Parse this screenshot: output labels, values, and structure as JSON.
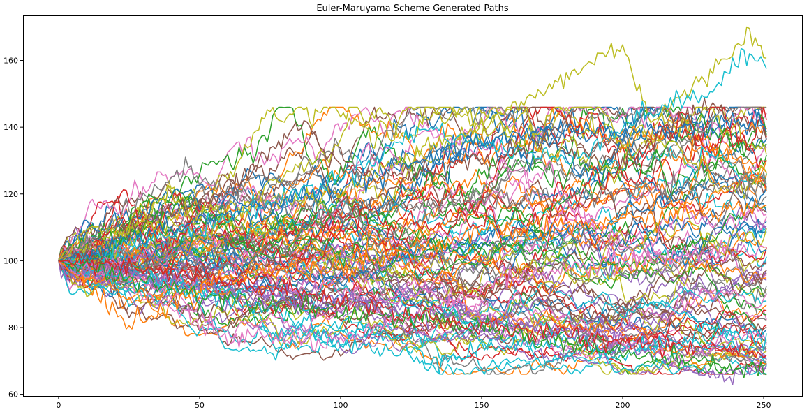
{
  "chart_data": {
    "type": "line",
    "title": "Euler-Maruyama Scheme Generated Paths",
    "xlabel": "",
    "ylabel": "",
    "xlim": [
      -12.6,
      263.6
    ],
    "ylim": [
      59.5,
      173.5
    ],
    "x_ticks": [
      0,
      50,
      100,
      150,
      200,
      250
    ],
    "y_ticks": [
      60,
      80,
      100,
      120,
      140,
      160
    ],
    "grid": false,
    "legend": "none",
    "n_steps": 252,
    "initial_value": 100,
    "n_paths": 100,
    "palette": [
      "#1f77b4",
      "#ff7f0e",
      "#2ca02c",
      "#d62728",
      "#9467bd",
      "#8c564b",
      "#e377c2",
      "#7f7f7f",
      "#bcbd22",
      "#17becf"
    ],
    "series": [
      {
        "color": "#bcbd22",
        "x": [
          0,
          50,
          100,
          130,
          150,
          170,
          200,
          210,
          230,
          245,
          251
        ],
        "values": [
          100,
          115,
          120,
          135,
          140,
          150,
          165,
          142,
          155,
          169,
          160
        ]
      },
      {
        "color": "#17becf",
        "x": [
          0,
          50,
          100,
          130,
          150,
          180,
          210,
          230,
          245,
          251
        ],
        "values": [
          100,
          110,
          125,
          140,
          135,
          130,
          145,
          150,
          162,
          158
        ]
      },
      {
        "color": "#8c564b",
        "x": [
          0,
          40,
          60,
          75,
          88,
          95,
          110,
          140,
          170,
          200,
          230,
          251
        ],
        "values": [
          100,
          115,
          120,
          133,
          142,
          131,
          125,
          128,
          135,
          130,
          147,
          137
        ]
      },
      {
        "color": "#7f7f7f",
        "x": [
          0,
          25,
          45,
          55,
          70,
          100,
          150,
          200,
          251
        ],
        "values": [
          100,
          115,
          128,
          122,
          118,
          115,
          118,
          120,
          123
        ]
      },
      {
        "color": "#1f77b4",
        "x": [
          0,
          50,
          100,
          150,
          180,
          200,
          230,
          251
        ],
        "values": [
          100,
          112,
          122,
          135,
          140,
          138,
          140,
          142
        ]
      },
      {
        "color": "#e377c2",
        "x": [
          0,
          30,
          45,
          50,
          60,
          80,
          100,
          130,
          160,
          200,
          251
        ],
        "values": [
          100,
          94,
          86,
          80,
          77,
          77,
          75,
          85,
          95,
          100,
          104
        ]
      },
      {
        "color": "#17becf",
        "x": [
          0,
          40,
          80,
          100,
          120,
          130,
          150,
          180,
          200,
          230,
          251
        ],
        "values": [
          100,
          92,
          85,
          75,
          72,
          70,
          74,
          76,
          72,
          80,
          76
        ]
      },
      {
        "color": "#9467bd",
        "x": [
          0,
          50,
          100,
          150,
          200,
          230,
          251
        ],
        "values": [
          100,
          92,
          88,
          82,
          76,
          65,
          69
        ]
      },
      {
        "color": "#ff7f0e",
        "x": [
          0,
          15,
          25,
          35,
          50,
          70,
          100,
          150,
          200,
          251
        ],
        "values": [
          100,
          88,
          82,
          84,
          92,
          97,
          98,
          108,
          112,
          116
        ]
      },
      {
        "color": "#2ca02c",
        "x": [
          0,
          50,
          100,
          150,
          200,
          251
        ],
        "values": [
          100,
          90,
          85,
          80,
          72,
          67
        ]
      },
      {
        "color": "#d62728",
        "x": [
          0,
          50,
          100,
          150,
          200,
          251
        ],
        "values": [
          100,
          95,
          88,
          80,
          76,
          73
        ]
      }
    ]
  }
}
